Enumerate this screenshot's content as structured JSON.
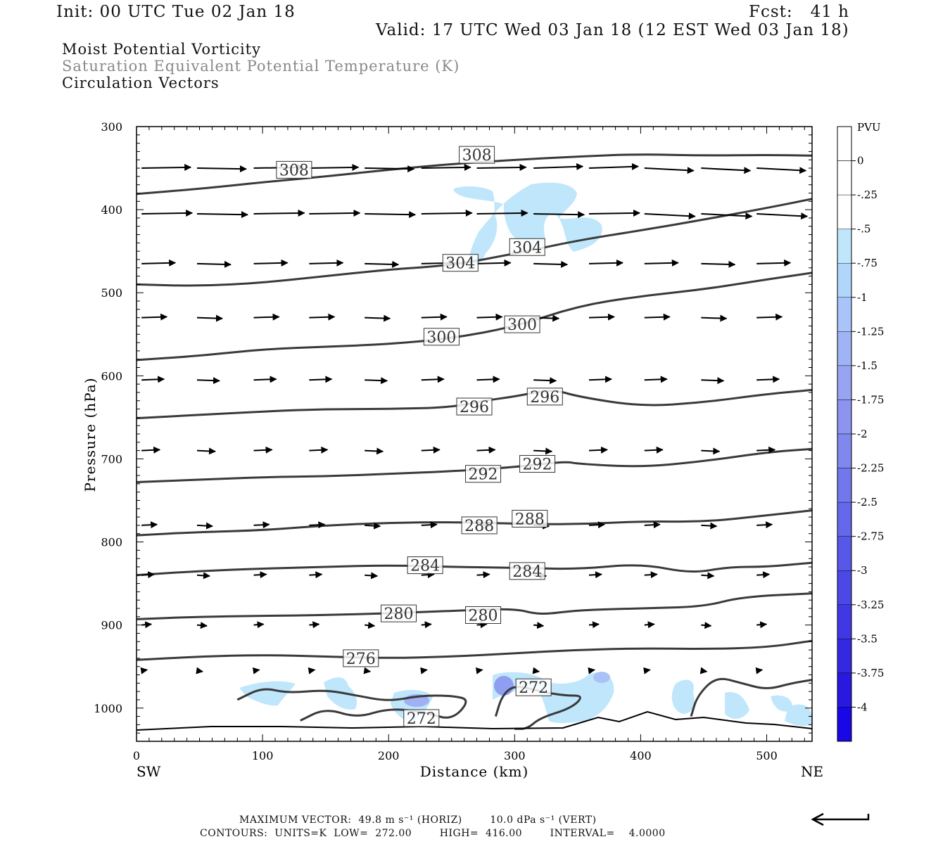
{
  "header": {
    "init": "Init: 00 UTC Tue 02 Jan 18",
    "fcst": "Fcst:   41 h",
    "valid": "Valid: 17 UTC Wed 03 Jan 18 (12 EST Wed 03 Jan 18)",
    "line1": "Moist Potential Vorticity",
    "line2": "Saturation Equivalent Potential Temperature (K)",
    "line3": "Circulation Vectors"
  },
  "footer": {
    "max_vector": "MAXIMUM VECTOR:  49.8 m s⁻¹ (HORIZ)        10.0 dPa s⁻¹ (VERT)",
    "contours": "CONTOURS:  UNITS=K  LOW=  272.00        HIGH=  416.00        INTERVAL=    4.0000"
  },
  "colors": {
    "contour": "#3a3a3a",
    "pv_light": "#bfe6fb",
    "pv_mid": "#8f9ef0",
    "vector": "#000000"
  },
  "chart_data": {
    "type": "contour",
    "xlabel": "Distance (km)",
    "ylabel": "Pressure (hPa)",
    "xlim": [
      0,
      536
    ],
    "ylim": [
      1040,
      300
    ],
    "x_ticks": [
      "0",
      "100",
      "200",
      "300",
      "400",
      "500"
    ],
    "y_ticks": [
      "300",
      "400",
      "500",
      "600",
      "700",
      "800",
      "900",
      "1000"
    ],
    "x_end_labels": {
      "left": "SW",
      "right": "NE"
    },
    "legend": {
      "title": "PVU",
      "labels": [
        "0",
        "-.25",
        "-.5",
        "-.75",
        "-1",
        "-1.25",
        "-1.5",
        "-1.75",
        "-2",
        "-2.25",
        "-2.5",
        "-2.75",
        "-3",
        "-3.25",
        "-3.5",
        "-3.75",
        "-4"
      ],
      "colors": [
        "#ffffff",
        "#ffffff",
        "#bfe6fb",
        "#b0d6fb",
        "#a8c4f8",
        "#a0b4f5",
        "#98a4f2",
        "#8c94f0",
        "#8088ee",
        "#7078ec",
        "#6468ea",
        "#5858e8",
        "#4c48e6",
        "#4038e4",
        "#3428e2",
        "#2818e0",
        "#1808e6"
      ]
    },
    "isentropes": [
      {
        "label": "308",
        "points": [
          [
            0,
            381
          ],
          [
            50,
            375
          ],
          [
            100,
            367
          ],
          [
            150,
            360
          ],
          [
            200,
            352
          ],
          [
            250,
            345
          ],
          [
            300,
            340
          ],
          [
            350,
            336
          ],
          [
            400,
            333
          ],
          [
            450,
            335
          ],
          [
            500,
            334
          ],
          [
            536,
            335
          ]
        ]
      },
      {
        "label": "304",
        "points": [
          [
            0,
            490
          ],
          [
            50,
            492
          ],
          [
            100,
            488
          ],
          [
            150,
            480
          ],
          [
            200,
            472
          ],
          [
            250,
            467
          ],
          [
            300,
            453
          ],
          [
            350,
            437
          ],
          [
            400,
            425
          ],
          [
            450,
            412
          ],
          [
            500,
            398
          ],
          [
            536,
            387
          ]
        ]
      },
      {
        "label": "300",
        "points": [
          [
            0,
            581
          ],
          [
            50,
            576
          ],
          [
            100,
            568
          ],
          [
            150,
            565
          ],
          [
            200,
            562
          ],
          [
            250,
            555
          ],
          [
            300,
            541
          ],
          [
            350,
            516
          ],
          [
            400,
            504
          ],
          [
            450,
            496
          ],
          [
            500,
            484
          ],
          [
            536,
            476
          ]
        ]
      },
      {
        "label": "296",
        "points": [
          [
            0,
            651
          ],
          [
            50,
            647
          ],
          [
            100,
            643
          ],
          [
            150,
            640
          ],
          [
            200,
            640
          ],
          [
            250,
            638
          ],
          [
            275,
            630
          ],
          [
            300,
            625
          ],
          [
            330,
            616
          ],
          [
            350,
            625
          ],
          [
            400,
            637
          ],
          [
            450,
            632
          ],
          [
            500,
            622
          ],
          [
            536,
            617
          ]
        ]
      },
      {
        "label": "292",
        "points": [
          [
            0,
            728
          ],
          [
            50,
            725
          ],
          [
            100,
            722
          ],
          [
            150,
            721
          ],
          [
            200,
            718
          ],
          [
            250,
            715
          ],
          [
            300,
            710
          ],
          [
            340,
            703
          ],
          [
            350,
            706
          ],
          [
            400,
            710
          ],
          [
            450,
            703
          ],
          [
            500,
            692
          ],
          [
            536,
            688
          ]
        ]
      },
      {
        "label": "288",
        "points": [
          [
            0,
            792
          ],
          [
            50,
            788
          ],
          [
            100,
            786
          ],
          [
            150,
            780
          ],
          [
            200,
            777
          ],
          [
            250,
            776
          ],
          [
            300,
            778
          ],
          [
            350,
            779
          ],
          [
            400,
            775
          ],
          [
            450,
            776
          ],
          [
            500,
            768
          ],
          [
            536,
            762
          ]
        ]
      },
      {
        "label": "284",
        "points": [
          [
            0,
            840
          ],
          [
            50,
            835
          ],
          [
            100,
            832
          ],
          [
            150,
            830
          ],
          [
            200,
            828
          ],
          [
            250,
            830
          ],
          [
            300,
            831
          ],
          [
            350,
            833
          ],
          [
            400,
            826
          ],
          [
            440,
            838
          ],
          [
            470,
            830
          ],
          [
            500,
            830
          ],
          [
            536,
            825
          ]
        ]
      },
      {
        "label": "280",
        "points": [
          [
            0,
            893
          ],
          [
            50,
            890
          ],
          [
            100,
            889
          ],
          [
            150,
            888
          ],
          [
            200,
            886
          ],
          [
            250,
            883
          ],
          [
            300,
            880
          ],
          [
            320,
            888
          ],
          [
            350,
            882
          ],
          [
            400,
            880
          ],
          [
            450,
            878
          ],
          [
            480,
            866
          ],
          [
            536,
            862
          ]
        ]
      },
      {
        "label": "276",
        "points": [
          [
            0,
            942
          ],
          [
            50,
            938
          ],
          [
            100,
            936
          ],
          [
            150,
            938
          ],
          [
            200,
            940
          ],
          [
            250,
            938
          ],
          [
            300,
            934
          ],
          [
            350,
            930
          ],
          [
            400,
            928
          ],
          [
            450,
            929
          ],
          [
            500,
            927
          ],
          [
            536,
            919
          ]
        ]
      },
      {
        "label": "272",
        "points": [
          [
            80,
            990
          ],
          [
            100,
            975
          ],
          [
            120,
            982
          ],
          [
            150,
            978
          ],
          [
            175,
            985
          ],
          [
            200,
            992
          ],
          [
            225,
            985
          ],
          [
            250,
            985
          ],
          [
            265,
            990
          ],
          [
            250,
            1015
          ],
          [
            230,
            1005
          ],
          [
            200,
            1000
          ],
          [
            175,
            1012
          ],
          [
            150,
            1000
          ],
          [
            130,
            1015
          ]
        ]
      },
      {
        "label": "272",
        "points": [
          [
            285,
            1010
          ],
          [
            290,
            985
          ],
          [
            300,
            972
          ],
          [
            320,
            980
          ],
          [
            340,
            985
          ],
          [
            355,
            985
          ],
          [
            345,
            1000
          ],
          [
            320,
            1012
          ],
          [
            310,
            1025
          ],
          [
            300,
            1025
          ]
        ]
      },
      {
        "label": "272",
        "points": [
          [
            440,
            1010
          ],
          [
            445,
            985
          ],
          [
            460,
            962
          ],
          [
            480,
            970
          ],
          [
            500,
            978
          ],
          [
            520,
            970
          ],
          [
            536,
            966
          ]
        ]
      }
    ],
    "pv_regions": [
      {
        "value": -0.5,
        "note": "upper-level negative MPV"
      },
      {
        "value": -1.25,
        "note": "near-surface negative MPV"
      }
    ],
    "max_vector_horiz_mps": 49.8,
    "max_vector_vert_dPa_s": 10.0,
    "contour_low": 272.0,
    "contour_high": 416.0,
    "contour_interval": 4.0
  }
}
